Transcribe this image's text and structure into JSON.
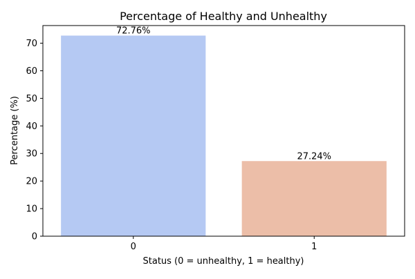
{
  "chart_data": {
    "type": "bar",
    "title": "Percentage of Healthy and Unhealthy",
    "xlabel": "Status (0 = unhealthy, 1 = healthy)",
    "ylabel": "Percentage (%)",
    "categories": [
      "0",
      "1"
    ],
    "values": [
      72.76,
      27.24
    ],
    "data_labels": [
      "72.76%",
      "27.24%"
    ],
    "bar_colors": [
      "#b5c9f3",
      "#ecbea8"
    ],
    "ylim": [
      0,
      76.4
    ],
    "yticks": [
      0,
      10,
      20,
      30,
      40,
      50,
      60,
      70
    ],
    "grid": false,
    "legend": "none"
  }
}
